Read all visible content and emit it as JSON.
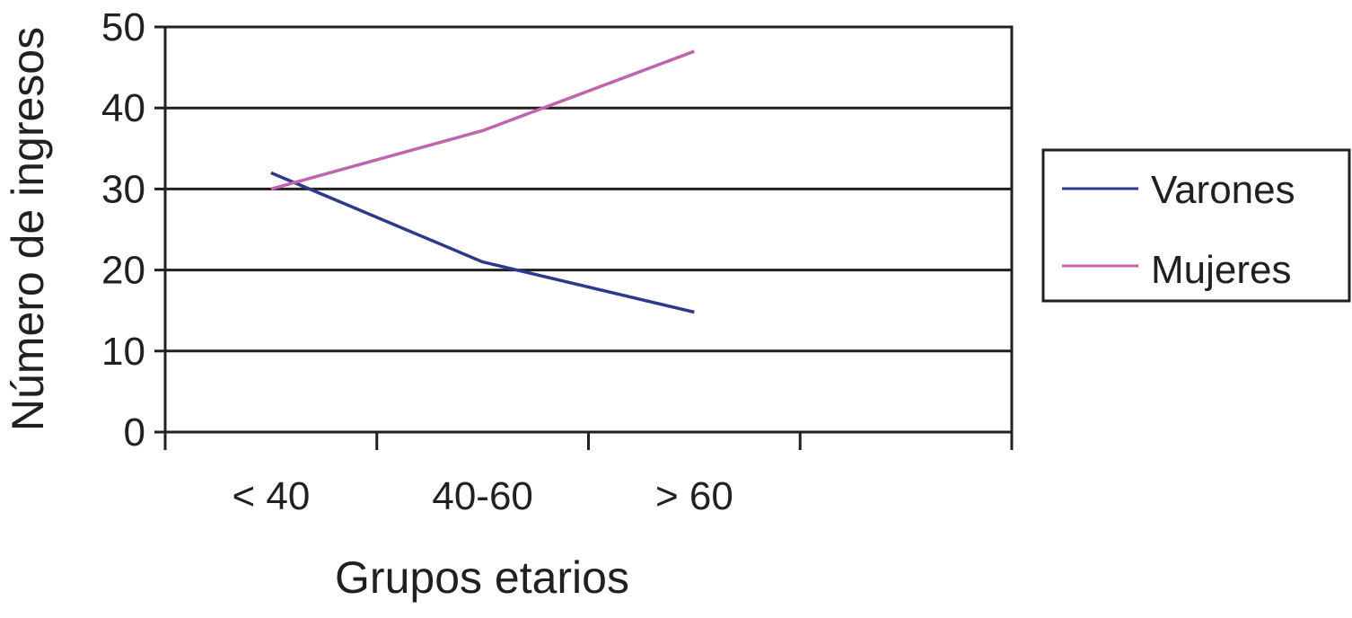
{
  "chart_data": {
    "type": "line",
    "xlabel": "Grupos etarios",
    "ylabel": "Número de ingresos",
    "categories": [
      "< 40",
      "40-60",
      "> 60"
    ],
    "ylim": [
      0,
      50
    ],
    "yticks": [
      "0",
      "10",
      "20",
      "30",
      "40",
      "50"
    ],
    "grid": "horizontal",
    "legend_position": "right",
    "series": [
      {
        "name": "Varones",
        "color": "#2b3a8c",
        "values": [
          32,
          21,
          14.8
        ]
      },
      {
        "name": "Mujeres",
        "color": "#c064ac",
        "values": [
          30,
          37.2,
          47
        ]
      }
    ]
  }
}
